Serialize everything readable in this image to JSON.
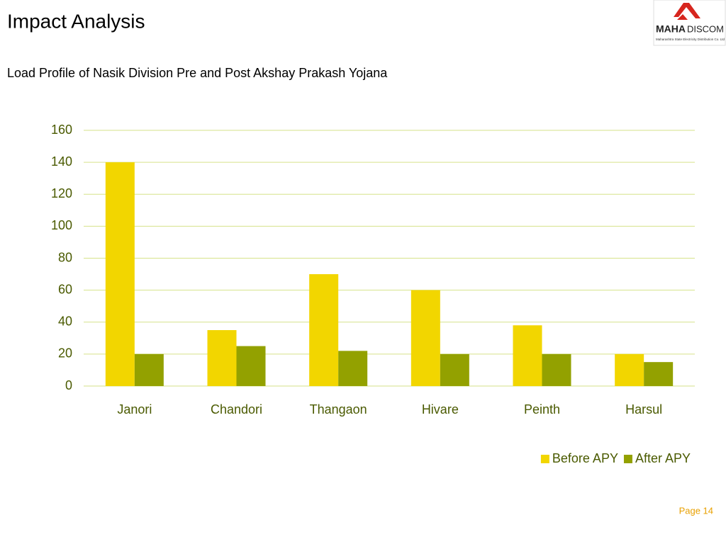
{
  "slide_title": "Impact Analysis",
  "logo": {
    "brand_bold": "MAHA",
    "brand": "DISCOM",
    "tagline": "Maharashtra State Electricity Distribution Co. Ltd"
  },
  "page": "Page 14",
  "chart_data": {
    "type": "bar",
    "title": "Load Profile of Nasik Division Pre and Post Akshay Prakash Yojana",
    "categories": [
      "Janori",
      "Chandori",
      "Thangaon",
      "Hivare",
      "Peinth",
      "Harsul"
    ],
    "series": [
      {
        "name": "Before APY",
        "color": "#f2d600",
        "values": [
          140,
          35,
          70,
          60,
          38,
          20
        ]
      },
      {
        "name": "After APY",
        "color": "#93a100",
        "values": [
          20,
          25,
          22,
          20,
          20,
          15
        ]
      }
    ],
    "ylim": [
      0,
      160
    ],
    "yticks": [
      0,
      20,
      40,
      60,
      80,
      100,
      120,
      140,
      160
    ],
    "grid": true,
    "legend": "bottom-right"
  }
}
